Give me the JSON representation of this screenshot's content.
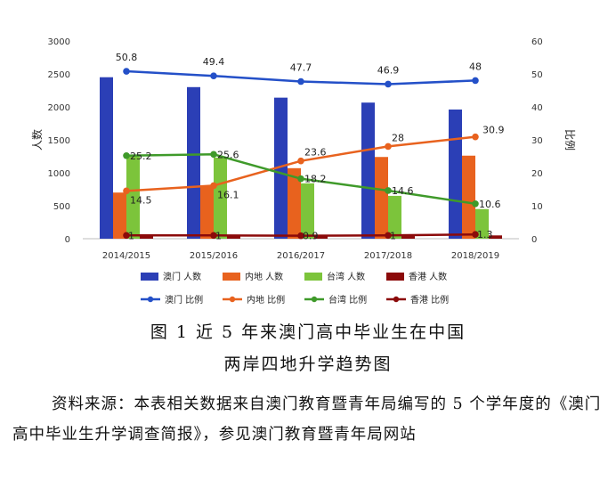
{
  "chart_data": {
    "type": "bar+line",
    "categories": [
      "2014/2015",
      "2015/2016",
      "2016/2017",
      "2017/2018",
      "2018/2019"
    ],
    "y_left": {
      "label": "人数",
      "range": [
        0,
        3000
      ],
      "ticks": [
        "0",
        "500",
        "1000",
        "1500",
        "2000",
        "2500",
        "3000"
      ]
    },
    "y_right": {
      "label": "比例",
      "range": [
        0,
        60
      ],
      "ticks": [
        "0",
        "10",
        "20",
        "30",
        "40",
        "50",
        "60"
      ]
    },
    "bar_series": [
      {
        "name": "澳门 人数",
        "color": "#2b3fb6",
        "values": [
          2450,
          2300,
          2140,
          2065,
          1960
        ]
      },
      {
        "name": "内地 人数",
        "color": "#e8621e",
        "values": [
          700,
          790,
          1070,
          1240,
          1260
        ]
      },
      {
        "name": "台湾 人数",
        "color": "#7cc43b",
        "values": [
          1260,
          1230,
          840,
          650,
          450
        ]
      },
      {
        "name": "香港 人数",
        "color": "#8b0a0a",
        "values": [
          40,
          40,
          40,
          40,
          50
        ]
      }
    ],
    "line_series": [
      {
        "name": "澳门 比例",
        "color": "#2450c8",
        "values": [
          50.8,
          49.4,
          47.7,
          46.9,
          48
        ],
        "labels": [
          "50.8",
          "49.4",
          "47.7",
          "46.9",
          "48"
        ]
      },
      {
        "name": "内地 比例",
        "color": "#e8621e",
        "values": [
          14.5,
          16.1,
          23.6,
          28,
          30.9
        ],
        "labels": [
          "14.5",
          "16.1",
          "23.6",
          "28",
          "30.9"
        ]
      },
      {
        "name": "台湾 比例",
        "color": "#3f9a2a",
        "values": [
          25.2,
          25.6,
          18.2,
          14.6,
          10.6
        ],
        "labels": [
          "25.2",
          "25.6",
          "18.2",
          "14.6",
          "10.6"
        ]
      },
      {
        "name": "香港 比例",
        "color": "#8b0a0a",
        "values": [
          1,
          1,
          0.9,
          1,
          1.3
        ],
        "labels": [
          "1",
          "1",
          "0.9",
          "1",
          "1.3"
        ]
      }
    ],
    "grid": false,
    "legend": "bottom"
  },
  "caption_line1": "图 1 近 5 年来澳门高中毕业生在中国",
  "caption_line2": "两岸四地升学趋势图",
  "source_text": "资料来源：本表相关数据来自澳门教育暨青年局编写的 5 个学年度的《澳门高中毕业生升学调查简报》，参见澳门教育暨青年局网站"
}
